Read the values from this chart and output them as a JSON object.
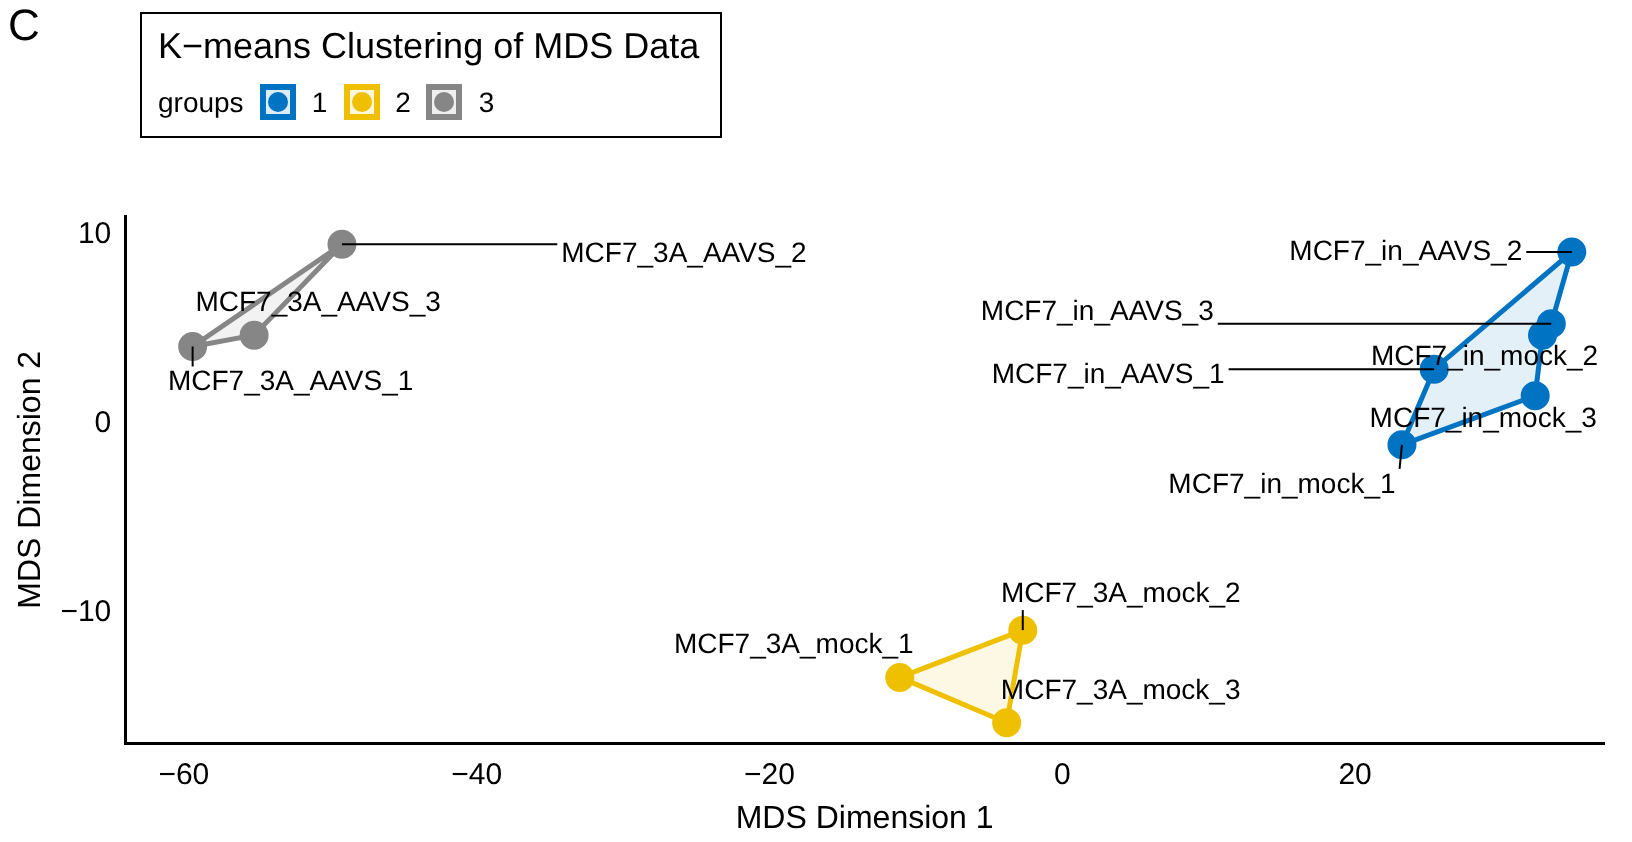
{
  "chart_data": {
    "type": "area",
    "title": "K−means Clustering of MDS Data",
    "legend_title": "groups",
    "xlabel": "MDS Dimension 1",
    "ylabel": "MDS Dimension 2",
    "series": [
      {
        "name": "1",
        "color": "#0073c2",
        "x": [
          25.4,
          34.8,
          33.4,
          32.8,
          32.3,
          23.2
        ],
        "values": [
          2.9,
          9.1,
          5.3,
          4.7,
          1.5,
          -1.1
        ]
      },
      {
        "name": "2",
        "color": "#efc000",
        "x": [
          -11.1,
          -2.7,
          -3.8
        ],
        "values": [
          -13.4,
          -10.9,
          -15.8
        ]
      },
      {
        "name": "3",
        "color": "#868686",
        "x": [
          -59.4,
          -49.2,
          -55.2
        ],
        "values": [
          4.1,
          9.5,
          4.7
        ]
      }
    ],
    "xlim": [
      -64,
      37
    ],
    "ylim": [
      -16.9,
      11
    ],
    "xticks": [
      -60,
      -40,
      -20,
      0,
      20
    ],
    "yticks": [
      -10,
      0,
      10
    ],
    "grid": false,
    "legend": "top left",
    "marker": "circle",
    "annotations": [
      "C",
      {
        "text": "MCF7_in_AAVS_1",
        "x": 25.4,
        "y": 2.9
      },
      {
        "text": "MCF7_in_AAVS_2",
        "x": 34.8,
        "y": 9.1
      },
      {
        "text": "MCF7_in_AAVS_3",
        "x": 33.4,
        "y": 5.3
      },
      {
        "text": "MCF7_in_mock_1",
        "x": 23.2,
        "y": -1.1
      },
      {
        "text": "MCF7_in_mock_2",
        "x": 32.8,
        "y": 4.7
      },
      {
        "text": "MCF7_in_mock_3",
        "x": 32.3,
        "y": 1.5
      },
      {
        "text": "MCF7_3A_mock_1",
        "x": -11.1,
        "y": -13.4
      },
      {
        "text": "MCF7_3A_mock_2",
        "x": -2.7,
        "y": -10.9
      },
      {
        "text": "MCF7_3A_mock_3",
        "x": -3.8,
        "y": -15.8
      },
      {
        "text": "MCF7_3A_AAVS_1",
        "x": -59.4,
        "y": 4.1
      },
      {
        "text": "MCF7_3A_AAVS_2",
        "x": -49.2,
        "y": 9.5
      },
      {
        "text": "MCF7_3A_AAVS_3",
        "x": -55.2,
        "y": 4.7
      }
    ]
  }
}
